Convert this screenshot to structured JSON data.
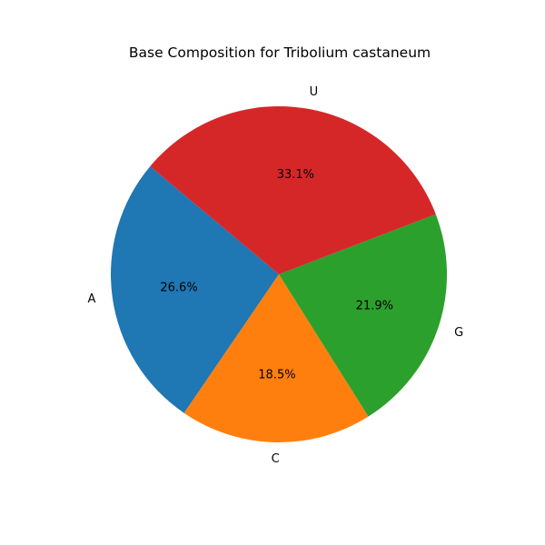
{
  "chart_data": {
    "type": "pie",
    "title": "Base Composition for Tribolium castaneum",
    "categories": [
      "A",
      "C",
      "G",
      "U"
    ],
    "values": [
      26.6,
      18.5,
      21.9,
      33.1
    ],
    "value_labels": [
      "26.6%",
      "18.5%",
      "21.9%",
      "33.1%"
    ],
    "colors": [
      "#1f77b4",
      "#ff7f0e",
      "#2ca02c",
      "#d62728"
    ],
    "start_angle_deg": 140,
    "direction": "counterclockwise",
    "legend": "none"
  }
}
